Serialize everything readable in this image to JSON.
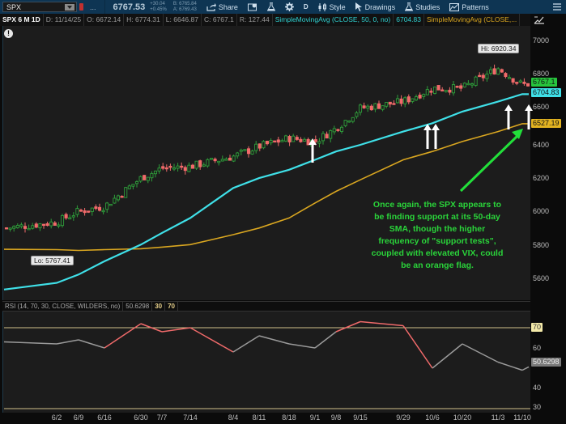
{
  "toolbar": {
    "symbol": "SPX",
    "more_label": "...",
    "last_price": "6767.53",
    "change_abs": "+30.04",
    "change_pct": "+0.45%",
    "bid": "B: 6765.84",
    "ask": "A: 6769.43",
    "share_label": "Share",
    "interval_label": "D",
    "style_label": "Style",
    "drawings_label": "Drawings",
    "studies_label": "Studies",
    "patterns_label": "Patterns"
  },
  "infobar": {
    "title": "SPX 6 M 1D",
    "date": "D: 11/14/25",
    "open": "O: 6672.14",
    "high": "H: 6774.31",
    "low": "L: 6646.87",
    "close": "C: 6767.1",
    "range": "R: 127.44",
    "sma50_label": "SimpleMovingAvg (CLOSE, 50, 0, no)",
    "sma50_value": "6704.83",
    "sma200_label": "SimpleMovingAvg (CLOSE,..."
  },
  "price_axis": {
    "ticks": [
      "7000",
      "6800",
      "6600",
      "6400",
      "6200",
      "6000",
      "5800",
      "5600"
    ],
    "tags": {
      "last": "6767.1",
      "sma50": "6704.83",
      "sma200": "6527.19"
    }
  },
  "callouts": {
    "hi": "Hi: 6920.34",
    "lo": "Lo: 5767.41"
  },
  "annotation": {
    "lines": [
      "Once again, the SPX appears to",
      "be finding support at its 50-day",
      "SMA, though the higher",
      "frequency of \"support tests\",",
      "coupled with elevated VIX, could",
      "be an orange flag."
    ]
  },
  "rsi": {
    "label": "RSI (14, 70, 30, CLOSE, WILDERS, no)",
    "value": "50.6298",
    "lower": "30",
    "upper": "70",
    "axis_ticks": [
      "70",
      "60",
      "40",
      "30"
    ],
    "value_tag": "50.6298"
  },
  "date_axis": {
    "labels": [
      "6/2",
      "6/9",
      "6/16",
      "6/30",
      "7/7",
      "7/14",
      "8/4",
      "8/11",
      "8/18",
      "9/1",
      "9/8",
      "9/15",
      "9/29",
      "10/6",
      "10/20",
      "11/3",
      "11/10"
    ]
  },
  "colors": {
    "up": "#2e9e3a",
    "down": "#f06a6a",
    "sma50": "#3fe0e8",
    "sma200": "#d9a620",
    "annotation": "#2ad43a",
    "rsi_line": "#9a9a9a",
    "rsi_overbought": "#f06a6a",
    "rsi_levels": "#cfc08a"
  },
  "chart_data": [
    {
      "type": "candlestick",
      "title": "SPX 6 M 1D",
      "xlabel": "",
      "ylabel": "",
      "ylim": [
        5550,
        7050
      ],
      "x_tick_labels": [
        "6/2",
        "6/9",
        "6/16",
        "6/30",
        "7/7",
        "7/14",
        "8/4",
        "8/11",
        "8/18",
        "9/1",
        "9/8",
        "9/15",
        "9/29",
        "10/6",
        "10/20",
        "11/3",
        "11/10"
      ],
      "y_tick_labels": [
        "5600",
        "5800",
        "6000",
        "6200",
        "6400",
        "6600",
        "6800",
        "7000"
      ],
      "last_bar": {
        "date": "11/14/25",
        "open": 6672.14,
        "high": 6774.31,
        "low": 6646.87,
        "close": 6767.1
      },
      "annotations": [
        "Hi: 6920.34",
        "Lo: 5767.41"
      ],
      "approx_close_by_date": {
        "6/2": 5935,
        "6/9": 6000,
        "6/16": 6030,
        "6/30": 6200,
        "7/7": 6260,
        "7/14": 6270,
        "8/4": 6330,
        "8/11": 6390,
        "8/18": 6440,
        "9/1": 6420,
        "9/8": 6500,
        "9/15": 6620,
        "9/29": 6660,
        "10/6": 6740,
        "10/20": 6740,
        "11/3": 6860,
        "11/10": 6760
      },
      "series": [
        {
          "name": "SimpleMovingAvg (CLOSE, 50, 0, no)",
          "last": 6704.83,
          "approx_by_date": {
            "6/2": 5570,
            "6/9": 5620,
            "6/16": 5700,
            "6/30": 5800,
            "7/7": 5870,
            "7/14": 5960,
            "8/4": 6140,
            "8/11": 6200,
            "8/18": 6250,
            "9/1": 6310,
            "9/8": 6360,
            "9/15": 6400,
            "9/29": 6480,
            "10/6": 6530,
            "10/20": 6600,
            "11/3": 6660,
            "11/10": 6705
          }
        },
        {
          "name": "SimpleMovingAvg (CLOSE, 200)",
          "last": 6527.19,
          "approx_by_date": {
            "6/2": 5770,
            "6/9": 5765,
            "6/16": 5770,
            "6/30": 5775,
            "7/7": 5785,
            "7/14": 5800,
            "8/4": 5860,
            "8/11": 5900,
            "8/18": 5960,
            "9/1": 6050,
            "9/8": 6120,
            "9/15": 6190,
            "9/29": 6310,
            "10/6": 6360,
            "10/20": 6420,
            "11/3": 6480,
            "11/10": 6527
          }
        }
      ],
      "legend_position": "top"
    },
    {
      "type": "line",
      "title": "RSI (14, 70, 30, CLOSE, WILDERS, no)",
      "ylim": [
        30,
        78
      ],
      "y_tick_labels": [
        "30",
        "40",
        "60",
        "70"
      ],
      "reference_lines": [
        30,
        70
      ],
      "last": 50.6298,
      "x_tick_labels": [
        "6/2",
        "6/9",
        "6/16",
        "6/30",
        "7/7",
        "7/14",
        "8/4",
        "8/11",
        "8/18",
        "9/1",
        "9/8",
        "9/15",
        "9/29",
        "10/6",
        "10/20",
        "11/3",
        "11/10"
      ],
      "approx_by_date": {
        "6/2": 62,
        "6/9": 64,
        "6/16": 60,
        "6/30": 72,
        "7/7": 68,
        "7/14": 70,
        "8/4": 58,
        "8/11": 66,
        "8/18": 62,
        "9/1": 60,
        "9/8": 68,
        "9/15": 73,
        "9/29": 71,
        "10/6": 50,
        "10/20": 62,
        "11/3": 53,
        "11/10": 49
      }
    }
  ]
}
